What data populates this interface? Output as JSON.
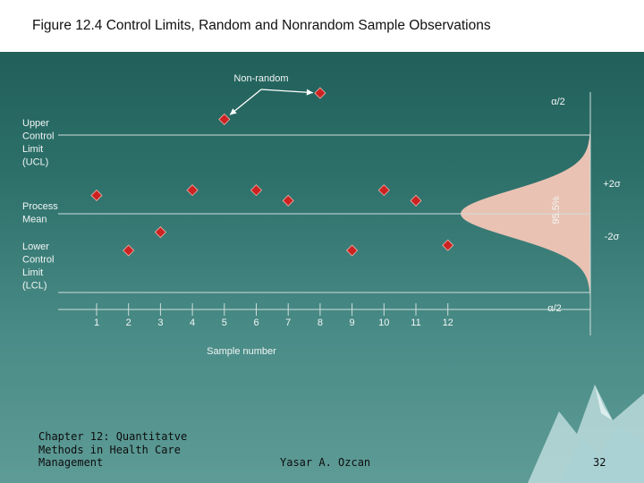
{
  "title": "Figure 12.4 Control Limits, Random and Nonrandom Sample Observations",
  "footer": {
    "course": "Chapter 12: Quantitatve\nMethods in Health Care\nManagement",
    "author": "Yasar A. Ozcan",
    "page": "32"
  },
  "colors": {
    "background": "#2c6f69",
    "marker": "#cc2222",
    "bell_fill": "#e9c2b3",
    "lines": "#cfdedc"
  },
  "chart_data": {
    "type": "scatter",
    "title": "Figure 12.4 Control Limits, Random and Nonrandom Sample Observations",
    "xlabel": "Sample number",
    "ylabel": "",
    "x_ticks": [
      "1",
      "2",
      "3",
      "4",
      "5",
      "6",
      "7",
      "8",
      "9",
      "10",
      "11",
      "12"
    ],
    "y_levels": {
      "UCL": 3,
      "plus_2sigma": 1,
      "mean": 0,
      "minus_2sigma": -1,
      "LCL": -3
    },
    "ylim": [
      -4,
      5
    ],
    "line_labels": {
      "ucl": "Upper\nControl\nLimit\n(UCL)",
      "mean": "Process\nMean",
      "lcl": "Lower\nControl\nLimit\n(LCL)"
    },
    "sigma_labels": {
      "plus": "+2σ",
      "minus": "-2σ"
    },
    "alpha_labels": {
      "upper": "α/2",
      "lower": "α/2"
    },
    "coverage_label": "95.5%",
    "annotation": {
      "text": "Non-random",
      "points": [
        5,
        8
      ]
    },
    "points": [
      {
        "x": 1,
        "y": 0.7
      },
      {
        "x": 2,
        "y": -1.4
      },
      {
        "x": 3,
        "y": -0.7
      },
      {
        "x": 4,
        "y": 0.9
      },
      {
        "x": 5,
        "y": 3.6
      },
      {
        "x": 6,
        "y": 0.9
      },
      {
        "x": 7,
        "y": 0.5
      },
      {
        "x": 8,
        "y": 4.6
      },
      {
        "x": 9,
        "y": -1.4
      },
      {
        "x": 10,
        "y": 0.9
      },
      {
        "x": 11,
        "y": 0.5
      },
      {
        "x": 12,
        "y": -1.2
      }
    ]
  }
}
